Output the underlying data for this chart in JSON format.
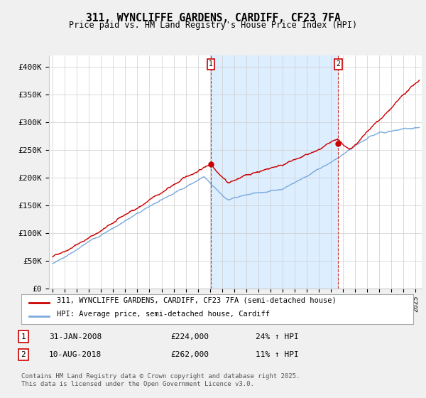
{
  "title_line1": "311, WYNCLIFFE GARDENS, CARDIFF, CF23 7FA",
  "title_line2": "Price paid vs. HM Land Registry's House Price Index (HPI)",
  "ylabel_ticks": [
    "£0",
    "£50K",
    "£100K",
    "£150K",
    "£200K",
    "£250K",
    "£300K",
    "£350K",
    "£400K"
  ],
  "ylim": [
    0,
    420000
  ],
  "xlim_start": 1994.7,
  "xlim_end": 2025.5,
  "marker1_date": 2008.08,
  "marker1_label": "1",
  "marker1_price": 224000,
  "marker1_hpi_pct": "24% ↑ HPI",
  "marker1_date_str": "31-JAN-2008",
  "marker2_date": 2018.6,
  "marker2_label": "2",
  "marker2_price": 262000,
  "marker2_hpi_pct": "11% ↑ HPI",
  "marker2_date_str": "10-AUG-2018",
  "line_color_property": "#cc0000",
  "line_color_hpi": "#7aaadd",
  "shade_color": "#ddeeff",
  "legend_property": "311, WYNCLIFFE GARDENS, CARDIFF, CF23 7FA (semi-detached house)",
  "legend_hpi": "HPI: Average price, semi-detached house, Cardiff",
  "footnote": "Contains HM Land Registry data © Crown copyright and database right 2025.\nThis data is licensed under the Open Government Licence v3.0.",
  "background_color": "#f0f0f0",
  "plot_background": "#ffffff",
  "grid_color": "#cccccc"
}
